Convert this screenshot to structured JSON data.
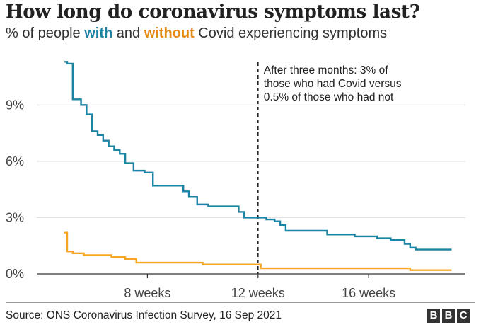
{
  "header": {
    "title": "How long do coronavirus symptoms last?",
    "subtitle_prefix": "% of people ",
    "subtitle_with": "with",
    "subtitle_and": " and ",
    "subtitle_without": "without",
    "subtitle_suffix": " Covid experiencing symptoms"
  },
  "chart_data": {
    "type": "line",
    "x_unit": "weeks",
    "xlim": [
      4,
      19.5
    ],
    "ylim": [
      0,
      11.5
    ],
    "x_ticks": [
      8,
      12,
      16
    ],
    "x_tick_labels": [
      "8 weeks",
      "12 weeks",
      "16 weeks"
    ],
    "y_ticks": [
      0,
      3,
      6,
      9
    ],
    "y_tick_labels": [
      "0%",
      "3%",
      "6%",
      "9%"
    ],
    "grid": true,
    "annotation": {
      "x": 12,
      "lines": [
        "After three months: 3% of",
        "those who had Covid versus",
        "0.5% of those who had not"
      ]
    },
    "series": [
      {
        "color": "#1b84a2",
        "x": [
          5.0,
          5.1,
          5.3,
          5.6,
          5.8,
          6.0,
          6.2,
          6.4,
          6.6,
          6.8,
          7.0,
          7.2,
          7.5,
          7.9,
          8.2,
          9.0,
          9.3,
          9.5,
          9.8,
          10.2,
          10.5,
          11.0,
          11.3,
          11.5,
          12.0,
          12.3,
          12.6,
          12.8,
          13.0,
          14.0,
          14.5,
          15.0,
          15.5,
          16.0,
          16.2,
          16.3,
          16.5,
          16.8,
          17.3,
          17.5,
          17.7,
          18.0,
          18.5,
          19.0
        ],
        "y": [
          11.3,
          11.2,
          9.3,
          9.0,
          8.5,
          7.6,
          7.4,
          7.1,
          6.8,
          6.6,
          6.4,
          5.9,
          5.5,
          5.4,
          4.7,
          4.7,
          4.4,
          4.1,
          3.7,
          3.6,
          3.6,
          3.6,
          3.3,
          3.0,
          3.0,
          2.9,
          2.8,
          2.6,
          2.3,
          2.3,
          2.1,
          2.1,
          2.0,
          2.0,
          2.0,
          1.9,
          1.9,
          1.8,
          1.6,
          1.4,
          1.3,
          1.3,
          1.3,
          1.3
        ]
      },
      {
        "color": "#f5a623",
        "x": [
          5.0,
          5.1,
          5.3,
          5.7,
          6.7,
          7.2,
          7.6,
          9.0,
          10.0,
          11.0,
          12.0,
          12.1,
          13.0,
          14.0,
          15.0,
          16.0,
          17.0,
          17.5,
          19.0
        ],
        "y": [
          2.2,
          1.2,
          1.1,
          1.0,
          0.9,
          0.8,
          0.6,
          0.6,
          0.5,
          0.5,
          0.5,
          0.3,
          0.3,
          0.3,
          0.3,
          0.3,
          0.3,
          0.2,
          0.2
        ]
      }
    ]
  },
  "footer": {
    "source": "Source: ONS Coronavirus Infection Survey, 16 Sep 2021",
    "logo_letters": [
      "B",
      "B",
      "C"
    ]
  }
}
